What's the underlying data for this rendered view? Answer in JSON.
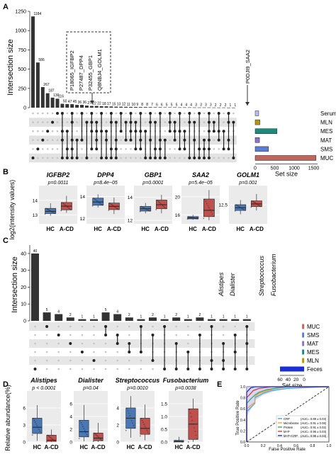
{
  "panels": {
    "A": {
      "label": "A",
      "ylabel": "Intersection size",
      "ytick_labels": [
        "0",
        "250",
        "500",
        "750",
        "1000",
        "1250"
      ],
      "set_size_label": "Set size",
      "set_size_ticks": [
        "0",
        "500",
        "1000",
        "1500"
      ],
      "sets": [
        "Serum",
        "MLN",
        "MES",
        "MAT",
        "SMS",
        "MUC"
      ],
      "set_colors": [
        "#b9bff0",
        "#b5960f",
        "#1f8a7a",
        "#8a73c8",
        "#5b7bd6",
        "#c0665a"
      ],
      "annotation_box": [
        "P18065_IGFBP2",
        "P27487_DPP4",
        "P32455_GBP1",
        "Q8NBJ4_GOLM1"
      ],
      "annotation_single": "P0DJI9_SAA2"
    },
    "B": {
      "label": "B",
      "ylabel": "log2(intensity values)",
      "groups": [
        "HC",
        "A-CD"
      ],
      "group_colors": [
        "#4a78b5",
        "#c0504d"
      ]
    },
    "C": {
      "label": "C",
      "ylabel": "Intersection size",
      "ytick_labels": [
        "0",
        "10",
        "20",
        "30",
        "40"
      ],
      "set_size_label": "Set size",
      "set_size_ticks": [
        "0",
        "20",
        "40",
        "60"
      ],
      "sets": [
        "MUC",
        "SMS",
        "MAT",
        "MES",
        "MLN",
        "Feces"
      ],
      "set_colors": [
        "#c0665a",
        "#5b7bd6",
        "#8a73c8",
        "#1f8a7a",
        "#b5960f",
        "#1a2ed6"
      ],
      "annotations": [
        "Alistipes",
        "Dialister",
        "Streptococcus",
        "Fusobacterium"
      ]
    },
    "D": {
      "label": "D",
      "ylabel": "Relative abundance(%)",
      "groups": [
        "HC",
        "A-CD"
      ]
    },
    "E": {
      "label": "E",
      "xlabel": "False Positive Rate",
      "ylabel": "True Positive Rate",
      "ticks": [
        "0.0",
        "0.2",
        "0.4",
        "0.6",
        "0.8",
        "1.0"
      ],
      "legend": [
        {
          "name": "CRP",
          "auc": "(AUC= 0.89 ± 0.03)",
          "color": "#4aa3d8"
        },
        {
          "name": "Microbiome",
          "auc": "(AUC= 0.91 ± 0.06)",
          "color": "#f0a030"
        },
        {
          "name": "Protein",
          "auc": "(AUC= 0.91 ± 0.02)",
          "color": "#3aaa5a"
        },
        {
          "name": "M+P",
          "auc": "(AUC= 0.96 ± 0.03)",
          "color": "#d04040"
        },
        {
          "name": "M+P+CRP",
          "auc": "(AUC= 0.98 ± 0.03)",
          "color": "#2030c0"
        }
      ]
    }
  },
  "chart_data": [
    {
      "type": "bar",
      "title": "",
      "ylabel": "Intersection size",
      "ylim": [
        0,
        1250
      ],
      "values": [
        1184,
        586,
        267,
        187,
        130,
        116,
        50,
        47,
        45,
        36,
        36,
        27,
        22,
        22,
        18,
        17,
        15,
        13,
        12,
        11,
        10,
        9,
        8,
        8,
        7,
        6,
        6,
        5,
        5,
        5,
        4,
        4,
        4,
        3,
        3,
        3,
        3,
        2,
        2,
        2,
        1,
        1
      ],
      "value_labels": [
        "1184",
        "586",
        "267",
        "187",
        "130",
        "116",
        "50",
        "47",
        "45",
        "36",
        "36",
        "27",
        "22",
        "22",
        "18",
        "17",
        "15",
        "13",
        "12",
        "11",
        "10",
        "9",
        "8",
        "8",
        "7",
        "6",
        "6",
        "5",
        "5",
        "5",
        "4",
        "4",
        "4",
        "3",
        "3",
        "3",
        "3",
        "2",
        "2",
        "2",
        "1",
        "1"
      ],
      "set_sizes": {
        "categories": [
          "Serum",
          "MLN",
          "MES",
          "MAT",
          "SMS",
          "MUC"
        ],
        "values": [
          90,
          120,
          560,
          110,
          340,
          1560
        ]
      }
    },
    {
      "type": "box",
      "groups": [
        "HC",
        "A-CD"
      ],
      "plots": [
        {
          "title": "IGFBP2",
          "pvalue": "p=0.0011",
          "ylim": [
            12.4,
            15.0
          ],
          "yticks": [
            "13",
            "14"
          ],
          "hc": [
            12.95,
            13.1,
            13.25,
            13.45,
            13.8
          ],
          "acd": [
            13.15,
            13.35,
            13.6,
            13.85,
            14.3
          ]
        },
        {
          "title": "DPP4",
          "pvalue": "p=8.4e−05",
          "ylim": [
            11.5,
            15.0
          ],
          "yticks": [
            "12",
            "14"
          ],
          "hc": [
            13.0,
            13.2,
            13.5,
            13.85,
            14.2
          ],
          "acd": [
            12.4,
            12.8,
            13.1,
            13.4,
            13.9
          ]
        },
        {
          "title": "GBP1",
          "pvalue": "p=0.0001",
          "ylim": [
            11.7,
            15.0
          ],
          "yticks": [
            "12",
            "14"
          ],
          "hc": [
            12.6,
            12.8,
            13.0,
            13.2,
            13.5
          ],
          "acd": [
            12.6,
            13.0,
            13.35,
            13.75,
            14.2
          ]
        },
        {
          "title": "SAA2",
          "pvalue": "p=5.4e−05",
          "ylim": [
            14.0,
            22.5
          ],
          "yticks": [
            "16",
            "20"
          ],
          "hc": [
            14.9,
            15.1,
            15.3,
            15.6,
            16.0
          ],
          "acd": [
            14.8,
            15.6,
            17.0,
            19.5,
            21.5
          ]
        },
        {
          "title": "GOLM1",
          "pvalue": "p=0.001",
          "ylim": [
            12.0,
            13.0
          ],
          "yticks": [
            "12.5"
          ],
          "hc": [
            12.25,
            12.35,
            12.42,
            12.5,
            12.62
          ],
          "acd": [
            12.35,
            12.45,
            12.52,
            12.6,
            12.78
          ]
        }
      ]
    },
    {
      "type": "bar",
      "title": "",
      "ylabel": "Intersection size",
      "ylim": [
        0,
        45
      ],
      "values": [
        40,
        5,
        4,
        2,
        1,
        1,
        5,
        4,
        2,
        1,
        2,
        1,
        2,
        1,
        2,
        1,
        1,
        1,
        1
      ],
      "value_labels": [
        "40",
        "5",
        "4",
        "2",
        "1",
        "1",
        "5",
        "4",
        "2",
        "1",
        "2",
        "1",
        "2",
        "1",
        "2",
        "1",
        "1",
        "1",
        "1"
      ],
      "set_sizes": {
        "categories": [
          "MUC",
          "SMS",
          "MAT",
          "MES",
          "MLN",
          "Feces"
        ],
        "values": [
          5,
          5,
          5,
          5,
          5,
          60
        ]
      }
    },
    {
      "type": "box",
      "groups": [
        "HC",
        "A-CD"
      ],
      "plots": [
        {
          "title": "Alistipes",
          "pvalue": "p < 0.0001",
          "ylim": [
            0,
            9
          ],
          "yticks": [
            "0",
            "3",
            "6"
          ],
          "hc": [
            0.2,
            1.5,
            2.6,
            4.2,
            6.5
          ],
          "acd": [
            0.0,
            0.1,
            0.3,
            1.2,
            2.2
          ]
        },
        {
          "title": "Dialister",
          "pvalue": "p=0.04",
          "ylim": [
            0,
            8
          ],
          "yticks": [
            "0",
            "2",
            "4",
            "6"
          ],
          "hc": [
            0.1,
            0.8,
            1.6,
            3.4,
            5.8
          ],
          "acd": [
            0.0,
            0.2,
            0.6,
            1.4,
            3.0
          ]
        },
        {
          "title": "Streptococcus",
          "pvalue": "p=0.0010",
          "ylim": [
            0,
            6
          ],
          "yticks": [
            "0",
            "2",
            "4"
          ],
          "hc": [
            0.5,
            1.6,
            2.8,
            4.0,
            5.4
          ],
          "acd": [
            0.2,
            0.9,
            1.6,
            2.8,
            4.4
          ]
        },
        {
          "title": "Fusobacterium",
          "pvalue": "p=0.0038",
          "ylim": [
            0,
            2
          ],
          "yticks": [
            "0.0",
            "0.5",
            "1.0",
            "1.5"
          ],
          "hc": [
            0.0,
            0.0,
            0.02,
            0.06,
            0.2
          ],
          "acd": [
            0.0,
            0.1,
            0.7,
            1.3,
            1.7
          ]
        }
      ]
    },
    {
      "type": "line",
      "xlabel": "False Positive Rate",
      "ylabel": "True Positive Rate",
      "xlim": [
        0,
        1
      ],
      "ylim": [
        0,
        1
      ],
      "series": [
        {
          "name": "CRP",
          "x": [
            0,
            0.0,
            0.05,
            0.1,
            0.1,
            0.2,
            0.3,
            0.5,
            1.0
          ],
          "y": [
            0,
            0.55,
            0.62,
            0.7,
            0.8,
            0.88,
            0.93,
            0.97,
            1.0
          ]
        },
        {
          "name": "Microbiome",
          "x": [
            0,
            0.0,
            0.1,
            0.1,
            0.15,
            0.25,
            0.4,
            1.0
          ],
          "y": [
            0,
            0.6,
            0.72,
            0.82,
            0.88,
            0.93,
            1.0,
            1.0
          ]
        },
        {
          "name": "Protein",
          "x": [
            0,
            0.0,
            0.05,
            0.1,
            0.15,
            0.25,
            0.5,
            1.0
          ],
          "y": [
            0,
            0.7,
            0.78,
            0.85,
            0.9,
            0.95,
            1.0,
            1.0
          ]
        },
        {
          "name": "M+P",
          "x": [
            0,
            0.0,
            0.05,
            0.08,
            0.15,
            0.3,
            1.0
          ],
          "y": [
            0,
            0.8,
            0.88,
            0.93,
            0.97,
            1.0,
            1.0
          ]
        },
        {
          "name": "M+P+CRP",
          "x": [
            0,
            0.0,
            0.03,
            0.05,
            0.1,
            0.2,
            1.0
          ],
          "y": [
            0,
            0.9,
            0.95,
            0.98,
            1.0,
            1.0,
            1.0
          ]
        }
      ]
    }
  ]
}
